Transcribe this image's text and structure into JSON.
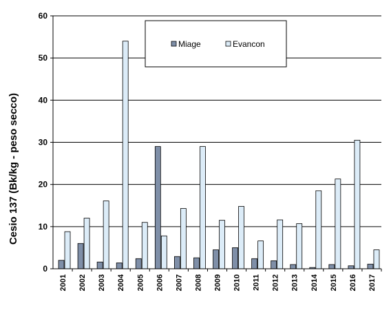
{
  "chart_data": {
    "type": "bar",
    "title": "",
    "xlabel": "",
    "ylabel": "Cesio 137 (Bk/kg - peso secco)",
    "ylim": [
      0,
      60
    ],
    "yticks": [
      0,
      10,
      20,
      30,
      40,
      50,
      60
    ],
    "grid": "horizontal",
    "legend_position": "top-center",
    "categories": [
      "2001",
      "2002",
      "2003",
      "2004",
      "2005",
      "2006",
      "2007",
      "2008",
      "2009",
      "2010",
      "2011",
      "2012",
      "2013",
      "2014",
      "2015",
      "2016",
      "2017"
    ],
    "series": [
      {
        "name": "Miage",
        "color": "#7f8fa8",
        "values": [
          2.0,
          6.0,
          1.6,
          1.4,
          2.4,
          29.0,
          2.9,
          2.6,
          4.5,
          5.0,
          2.4,
          1.9,
          1.0,
          0.3,
          1.0,
          0.7,
          1.1
        ]
      },
      {
        "name": "Evancon",
        "color": "#dcecf8",
        "values": [
          8.8,
          12.0,
          16.1,
          54.0,
          11.0,
          7.8,
          14.3,
          29.0,
          11.5,
          14.8,
          6.6,
          11.6,
          10.7,
          18.5,
          21.3,
          30.5,
          4.5
        ]
      }
    ]
  }
}
